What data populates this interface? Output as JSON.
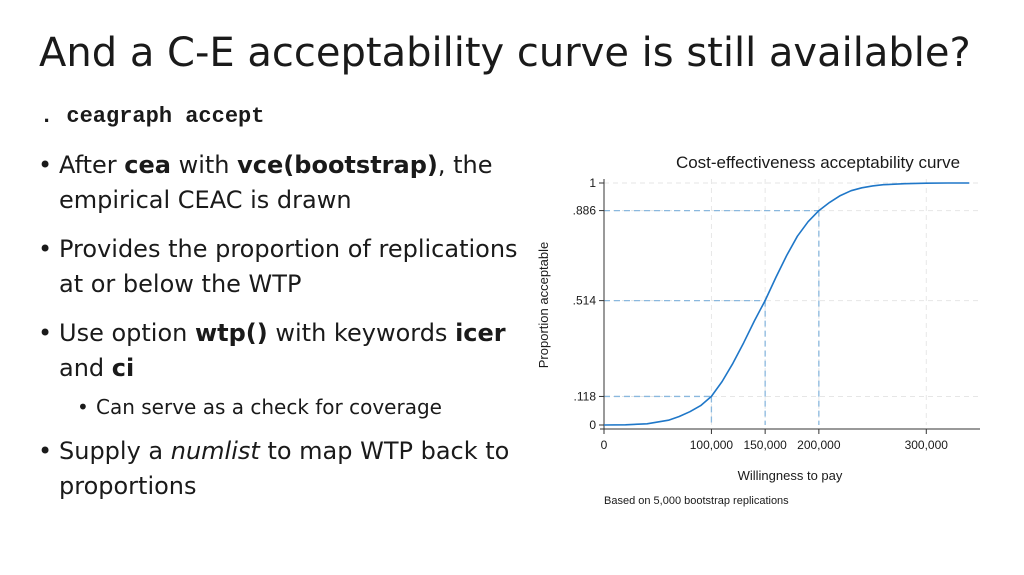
{
  "slide": {
    "title": "And a C-E acceptability curve is still available?",
    "command": ". ceagraph accept",
    "bullets": [
      {
        "before": "After ",
        "b1": "cea",
        "mid": " with ",
        "b2": "vce(bootstrap)",
        "after": ", the empirical CEAC is drawn"
      },
      {
        "text": "Provides the proportion of replications at or below the WTP"
      },
      {
        "before": "Use option ",
        "b1": "wtp()",
        "mid": " with keywords ",
        "b2": "icer",
        "mid2": " and ",
        "b3": "ci"
      },
      {
        "sub": "Can serve as a check for coverage"
      },
      {
        "before": "Supply a ",
        "i1": "numlist",
        "after": " to map WTP back to proportions"
      }
    ],
    "bullet_glyph": "•"
  },
  "chart_data": {
    "type": "line",
    "title": "Cost-effectiveness acceptability curve",
    "xlabel": "Willingness to pay",
    "ylabel": "Proportion acceptable",
    "note": "Based on 5,000 bootstrap replications",
    "xlim": [
      0,
      350000
    ],
    "ylim": [
      0,
      1
    ],
    "x_ticks": [
      0,
      100000,
      150000,
      200000,
      300000
    ],
    "x_tick_labels": [
      "0",
      "100,000",
      "150,000",
      "200,000",
      "300,000"
    ],
    "y_ticks": [
      0,
      0.118,
      0.514,
      0.886,
      1
    ],
    "y_tick_labels": [
      "0",
      ".118",
      ".514",
      ".886",
      "1"
    ],
    "reference_lines": [
      {
        "x": 100000,
        "y": 0.118
      },
      {
        "x": 150000,
        "y": 0.514
      },
      {
        "x": 200000,
        "y": 0.886
      }
    ],
    "series": [
      {
        "x": [
          0,
          20000,
          40000,
          60000,
          70000,
          80000,
          90000,
          100000,
          110000,
          120000,
          130000,
          140000,
          150000,
          160000,
          170000,
          180000,
          190000,
          200000,
          210000,
          220000,
          230000,
          240000,
          250000,
          260000,
          280000,
          300000,
          320000,
          340000
        ],
        "y": [
          0,
          0.001,
          0.005,
          0.02,
          0.035,
          0.055,
          0.08,
          0.118,
          0.18,
          0.255,
          0.34,
          0.43,
          0.514,
          0.61,
          0.7,
          0.78,
          0.84,
          0.886,
          0.92,
          0.948,
          0.968,
          0.98,
          0.988,
          0.993,
          0.997,
          0.999,
          1.0,
          1.0
        ]
      }
    ],
    "colors": {
      "line": "#1f77c8",
      "refline": "#8ab8de",
      "grid": "#e6e6e6",
      "axis": "#333333"
    }
  }
}
